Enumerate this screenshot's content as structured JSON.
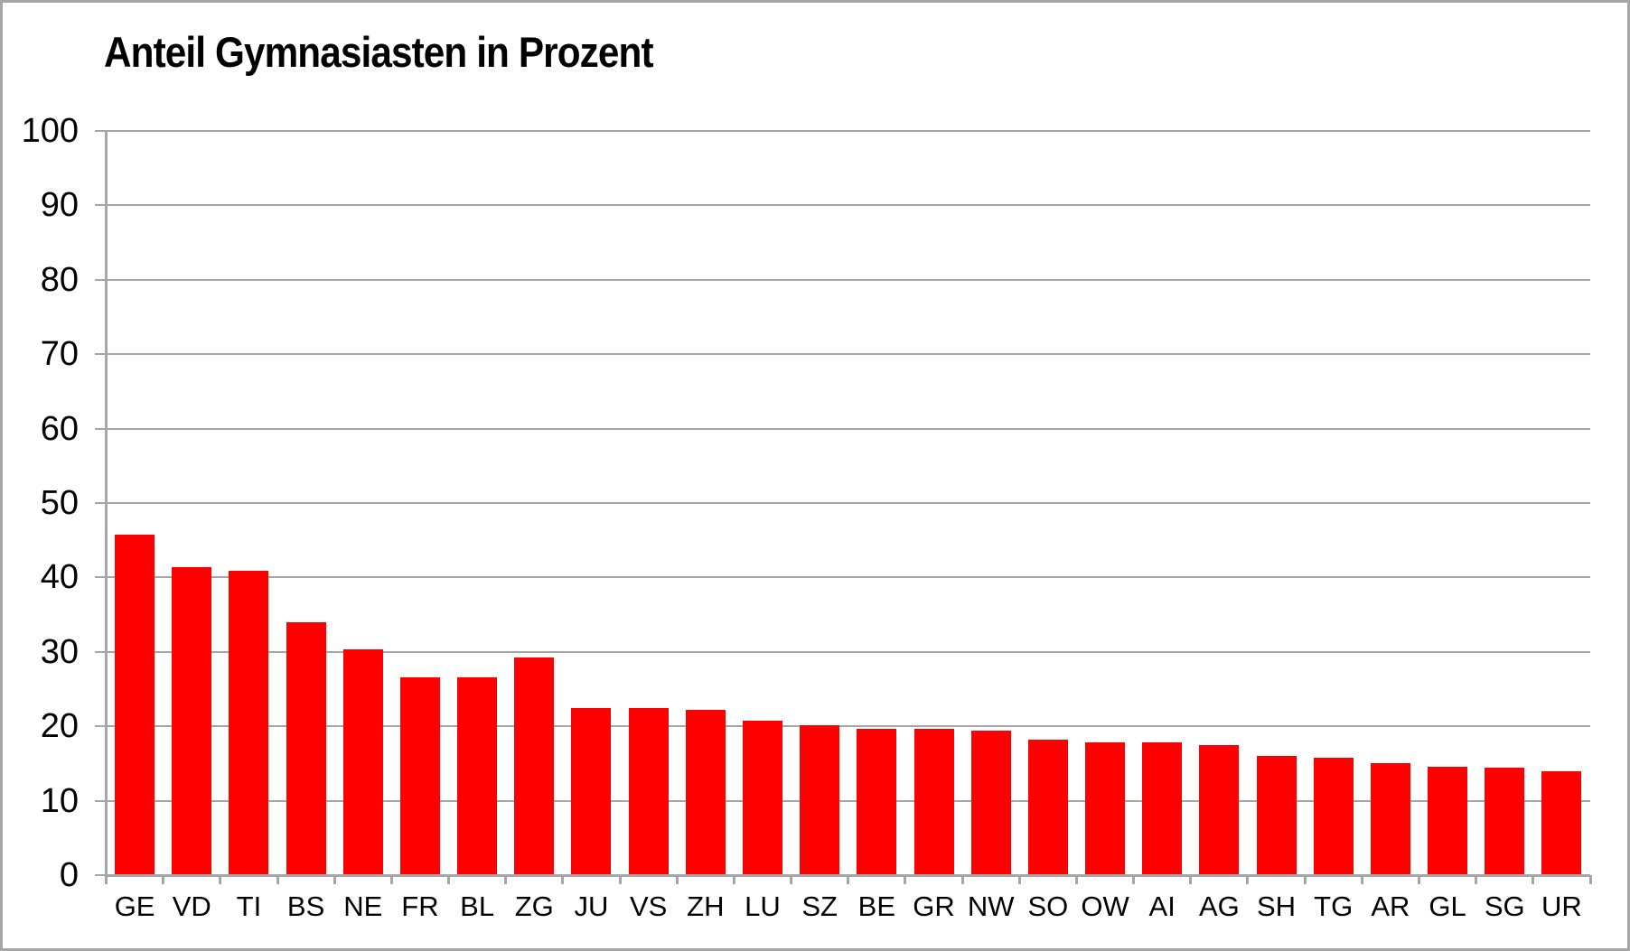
{
  "title": "Anteil Gymnasiasten in Prozent",
  "colors": {
    "bar": "#FF0000",
    "grid": "#A6A6A6",
    "axis": "#A6A6A6",
    "text": "#000000",
    "canvas_border": "#A6A6A6",
    "background": "#FFFFFF"
  },
  "chart_data": {
    "type": "bar",
    "title": "Anteil Gymnasiasten in Prozent",
    "xlabel": "",
    "ylabel": "",
    "categories": [
      "GE",
      "VD",
      "TI",
      "BS",
      "NE",
      "FR",
      "BL",
      "ZG",
      "JU",
      "VS",
      "ZH",
      "LU",
      "SZ",
      "BE",
      "GR",
      "NW",
      "SO",
      "OW",
      "AI",
      "AG",
      "SH",
      "TG",
      "AR",
      "GL",
      "SG",
      "UR"
    ],
    "values": [
      45.8,
      41.4,
      40.9,
      34.0,
      30.4,
      26.6,
      26.6,
      29.2,
      22.4,
      22.4,
      22.2,
      20.7,
      20.1,
      19.7,
      19.6,
      19.4,
      18.2,
      17.9,
      17.8,
      17.5,
      16.0,
      15.8,
      15.1,
      14.6,
      14.5,
      13.9
    ],
    "ylim": [
      0,
      100
    ],
    "yticks": [
      0,
      10,
      20,
      30,
      40,
      50,
      60,
      70,
      80,
      90,
      100
    ],
    "grid": true,
    "legend": null
  }
}
